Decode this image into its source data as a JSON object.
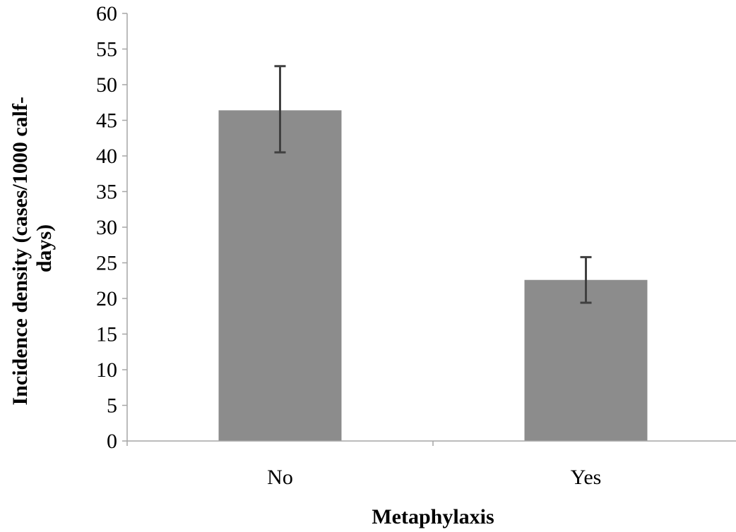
{
  "chart_data": {
    "type": "bar",
    "categories": [
      "No",
      "Yes"
    ],
    "values": [
      46.4,
      22.6
    ],
    "error_bars": {
      "lower": [
        40.5,
        19.4
      ],
      "upper": [
        52.6,
        25.8
      ]
    },
    "xlabel": "Metaphylaxis",
    "ylabel_lines": [
      "Incidence density (cases/1000 calf-",
      "days)"
    ],
    "ylim": [
      0,
      60
    ],
    "y_ticks": [
      "0",
      "5",
      "10",
      "15",
      "20",
      "25",
      "30",
      "35",
      "40",
      "45",
      "50",
      "55",
      "60"
    ],
    "grid": false,
    "legend": "none",
    "bar_color": "#8c8c8c",
    "error_bar_color": "#404040",
    "axis_color": "#a6a6a6"
  }
}
